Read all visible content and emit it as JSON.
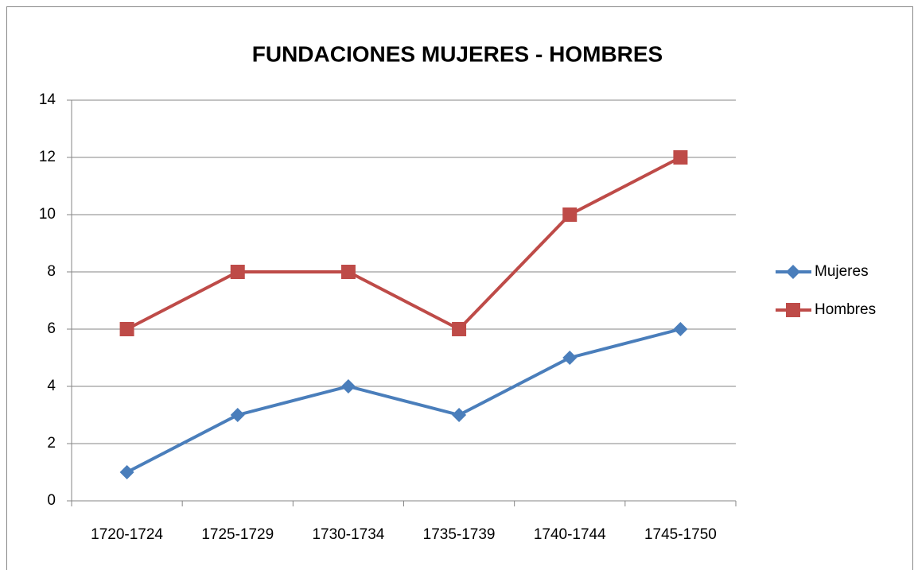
{
  "chart_data": {
    "type": "line",
    "title": "FUNDACIONES MUJERES - HOMBRES",
    "categories": [
      "1720-1724",
      "1725-1729",
      "1730-1734",
      "1735-1739",
      "1740-1744",
      "1745-1750"
    ],
    "series": [
      {
        "name": "Mujeres",
        "color": "#4a7ebb",
        "marker": "diamond",
        "values": [
          1,
          3,
          4,
          3,
          5,
          6
        ]
      },
      {
        "name": "Hombres",
        "color": "#be4b48",
        "marker": "square",
        "values": [
          6,
          8,
          8,
          6,
          10,
          12
        ]
      }
    ],
    "ylim": [
      0,
      14
    ],
    "yticks": [
      0,
      2,
      4,
      6,
      8,
      10,
      12,
      14
    ],
    "grid": true,
    "legend": "right"
  }
}
